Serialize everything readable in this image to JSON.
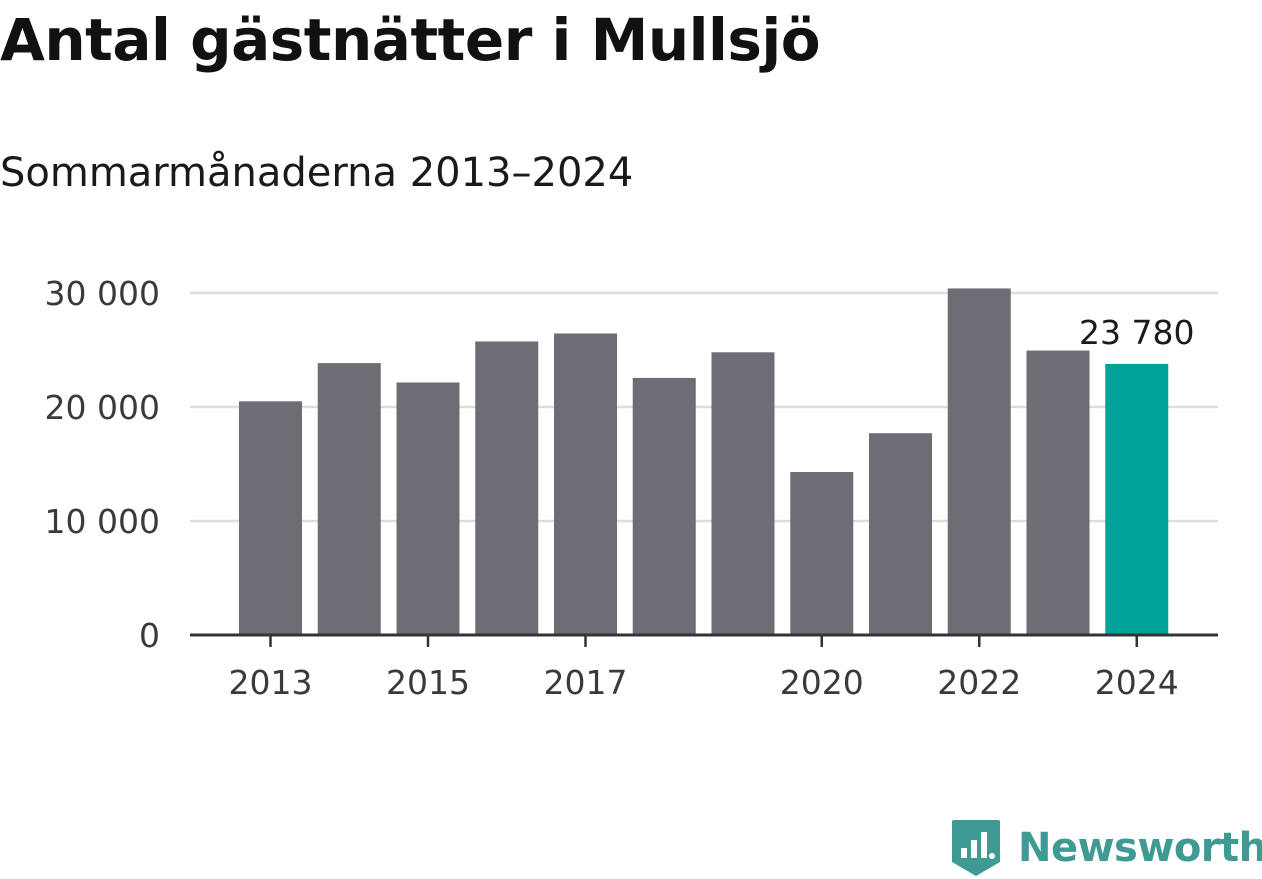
{
  "colors": {
    "bar": "#6e6d75",
    "highlight": "#00a39a",
    "grid": "#dddddd",
    "axis": "#333333",
    "brand": "#3f9a93"
  },
  "chart_data": {
    "type": "bar",
    "title": "Antal gästnätter i Mullsjö",
    "subtitle": "Sommarmånaderna 2013–2024",
    "categories": [
      "2013",
      "2014",
      "2015",
      "2016",
      "2017",
      "2018",
      "2019",
      "2020",
      "2021",
      "2022",
      "2023",
      "2024"
    ],
    "values": [
      20500,
      23850,
      22150,
      25750,
      26450,
      22550,
      24800,
      14300,
      17700,
      30400,
      24950,
      23780
    ],
    "highlight_index": 11,
    "x_tick_labels": [
      "2013",
      "2015",
      "2017",
      "2020",
      "2022",
      "2024"
    ],
    "y_ticks": [
      0,
      10000,
      20000,
      30000
    ],
    "y_tick_labels": [
      "0",
      "10 000",
      "20 000",
      "30 000"
    ],
    "ylim": [
      0,
      30000
    ],
    "data_labels": [
      {
        "index": 11,
        "text": "23 780"
      }
    ],
    "xlabel": "",
    "ylabel": "",
    "grid": true,
    "legend": "none"
  },
  "brand": {
    "name": "Newsworthy",
    "icon": "newsworthy-logo-icon"
  }
}
